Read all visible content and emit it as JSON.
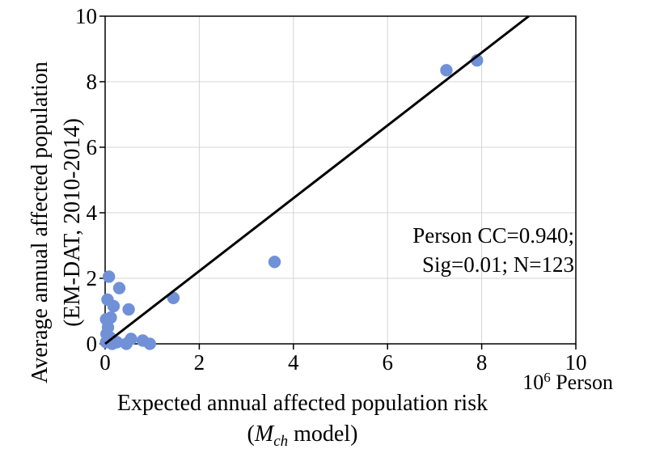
{
  "chart_data": {
    "type": "scatter",
    "title": "",
    "xlabel": "Expected annual affected population risk",
    "xlabel_line2_prefix": "(",
    "xlabel_line2_var": "M",
    "xlabel_line2_sub": "ch",
    "xlabel_line2_suffix": " model)",
    "x_unit": "Person",
    "x_unit_base": "10",
    "x_unit_exp": "6",
    "ylabel_line1": "Average annual affected population",
    "ylabel_line2": "(EM-DAT, 2010-2014)",
    "xlim": [
      0,
      10
    ],
    "ylim": [
      0,
      10
    ],
    "x_ticks": [
      "0",
      "2",
      "4",
      "6",
      "8",
      "10"
    ],
    "y_ticks": [
      "0",
      "2",
      "4",
      "6",
      "8",
      "10"
    ],
    "grid": true,
    "marker_color": "#7090d8",
    "line_color": "#000000",
    "fit_line": {
      "x": [
        0,
        9
      ],
      "y": [
        0,
        10
      ]
    },
    "annotation_line1": "Person CC=0.940;",
    "annotation_line2": "Sig=0.01; N=123",
    "points": [
      {
        "x": 7.9,
        "y": 8.65
      },
      {
        "x": 7.25,
        "y": 8.35
      },
      {
        "x": 3.6,
        "y": 2.5
      },
      {
        "x": 1.45,
        "y": 1.4
      },
      {
        "x": 0.3,
        "y": 1.7
      },
      {
        "x": 0.08,
        "y": 2.05
      },
      {
        "x": 0.05,
        "y": 1.35
      },
      {
        "x": 0.18,
        "y": 1.15
      },
      {
        "x": 0.5,
        "y": 1.05
      },
      {
        "x": 0.02,
        "y": 0.75
      },
      {
        "x": 0.12,
        "y": 0.8
      },
      {
        "x": 0.06,
        "y": 0.5
      },
      {
        "x": 0.03,
        "y": 0.3
      },
      {
        "x": 0.1,
        "y": 0.2
      },
      {
        "x": 0.02,
        "y": 0.05
      },
      {
        "x": 0.25,
        "y": 0.05
      },
      {
        "x": 0.55,
        "y": 0.15
      },
      {
        "x": 0.45,
        "y": 0.0
      },
      {
        "x": 0.8,
        "y": 0.1
      },
      {
        "x": 0.95,
        "y": 0.0
      },
      {
        "x": 0.15,
        "y": 0.0
      }
    ]
  }
}
